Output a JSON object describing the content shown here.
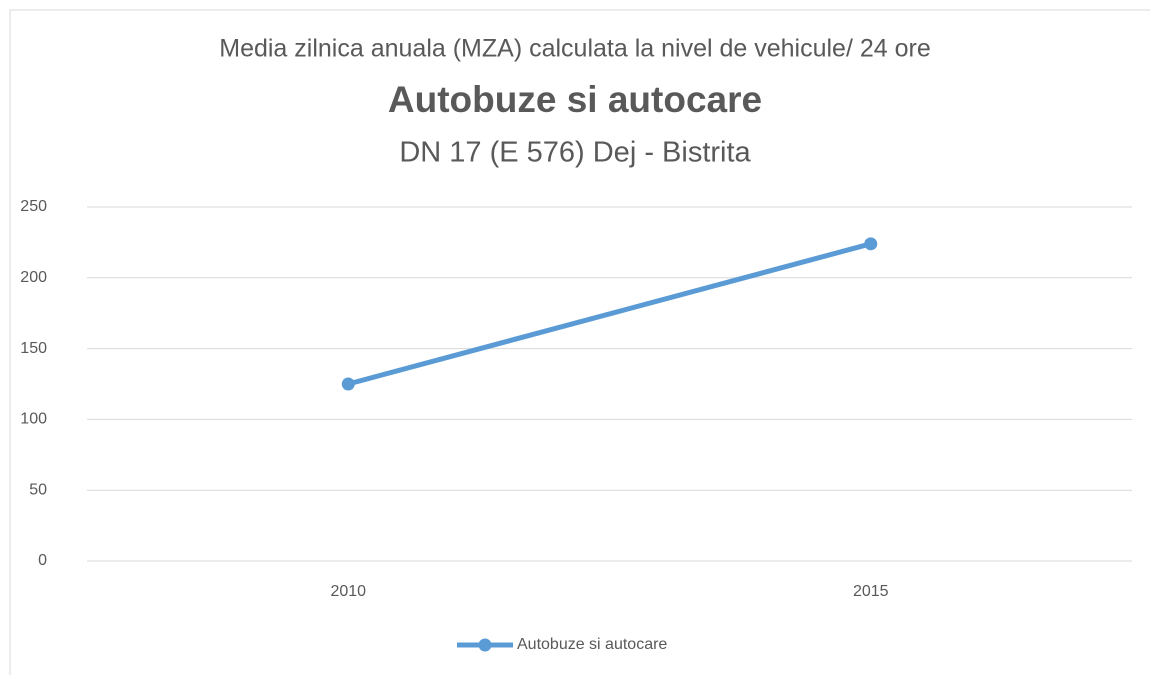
{
  "chart_data": {
    "type": "line",
    "supertitle": "Media zilnica anuala (MZA) calculata la nivel de vehicule/ 24 ore",
    "title": "Autobuze si autocare",
    "subtitle": "DN 17 (E 576) Dej - Bistrita",
    "categories": [
      "2010",
      "2015"
    ],
    "series": [
      {
        "name": "Autobuze si autocare",
        "color": "#5b9bd5",
        "values": [
          125,
          224
        ]
      }
    ],
    "ylim": [
      0,
      250
    ],
    "yticks": [
      0,
      50,
      100,
      150,
      200,
      250
    ],
    "grid": true,
    "legend": "bottom"
  }
}
